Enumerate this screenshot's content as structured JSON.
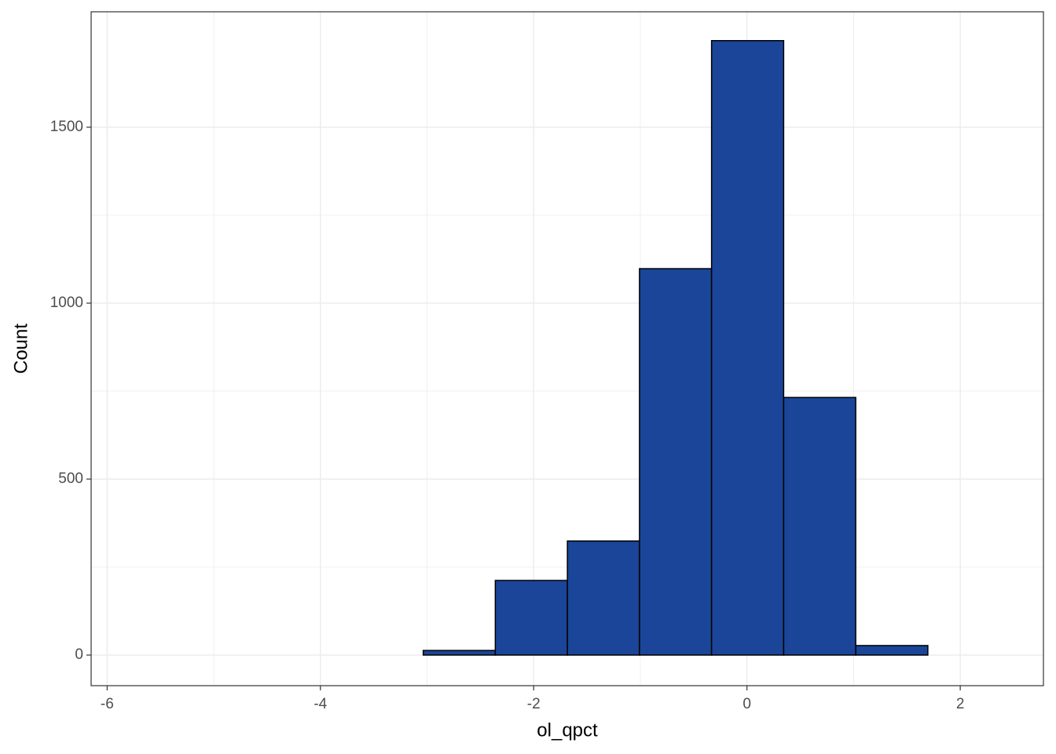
{
  "chart_data": {
    "type": "histogram",
    "x_label": "ol_qpct",
    "y_label": "Count",
    "bins": [
      -5.74,
      -5.064,
      -4.388,
      -3.712,
      -3.036,
      -2.36,
      -1.684,
      -1.008,
      -0.332,
      0.344,
      1.02,
      1.696,
      2.372
    ],
    "values": [
      0,
      0,
      0,
      0,
      13,
      212,
      324,
      1098,
      1746,
      732,
      27,
      0
    ],
    "color": "#1a4599",
    "edge_color": "#000000",
    "xlim": [
      -6.15,
      2.78
    ],
    "ylim": [
      -87,
      1828
    ],
    "xticks": [
      -6,
      -4,
      -2,
      0,
      2
    ],
    "yticks": [
      0,
      500,
      1000,
      1500
    ],
    "grid": true
  }
}
